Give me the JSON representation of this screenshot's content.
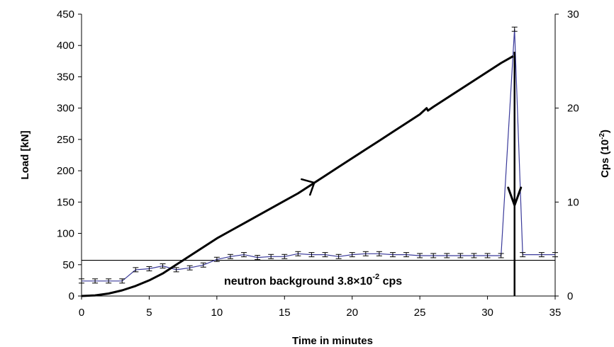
{
  "chart_data": {
    "type": "line",
    "xlabel": "Time in minutes",
    "ylabel_left": "Load [kN]",
    "ylabel_right": "Cps (10",
    "ylabel_right_exponent": "-2",
    "ylabel_right_close": ")",
    "xlim": [
      0,
      35
    ],
    "xticks": [
      0,
      5,
      10,
      15,
      20,
      25,
      30,
      35
    ],
    "ylim_left": [
      0,
      450
    ],
    "yticks_left": [
      0,
      50,
      100,
      150,
      200,
      250,
      300,
      350,
      400,
      450
    ],
    "ylim_right": [
      0,
      30
    ],
    "yticks_right": [
      0,
      10,
      20,
      30
    ],
    "grid": false,
    "legend": "none",
    "series": [
      {
        "axis": "left",
        "color": "#000000",
        "points": [
          [
            0,
            0
          ],
          [
            1,
            1
          ],
          [
            2,
            4
          ],
          [
            3,
            9
          ],
          [
            4,
            16
          ],
          [
            5,
            25
          ],
          [
            6,
            36
          ],
          [
            7,
            50
          ],
          [
            8,
            64
          ],
          [
            9,
            78
          ],
          [
            10,
            92
          ],
          [
            11,
            104
          ],
          [
            12,
            116
          ],
          [
            13,
            128
          ],
          [
            14,
            140
          ],
          [
            15,
            152
          ],
          [
            16,
            164
          ],
          [
            17,
            178
          ],
          [
            18,
            192
          ],
          [
            19,
            206
          ],
          [
            20,
            220
          ],
          [
            21,
            234
          ],
          [
            22,
            248
          ],
          [
            23,
            262
          ],
          [
            24,
            276
          ],
          [
            25,
            290
          ],
          [
            25.5,
            300
          ],
          [
            25.6,
            296
          ],
          [
            26,
            302
          ],
          [
            27,
            316
          ],
          [
            28,
            330
          ],
          [
            29,
            344
          ],
          [
            30,
            358
          ],
          [
            31,
            372
          ],
          [
            31.9,
            383
          ]
        ]
      },
      {
        "axis": "right",
        "color": "#3a3a9a",
        "error_bars": true,
        "points": [
          [
            0,
            1.6
          ],
          [
            1,
            1.6
          ],
          [
            2,
            1.6
          ],
          [
            3,
            1.6
          ],
          [
            4,
            2.8
          ],
          [
            5,
            2.9
          ],
          [
            6,
            3.2
          ],
          [
            7,
            2.8
          ],
          [
            8,
            3.0
          ],
          [
            9,
            3.3
          ],
          [
            10,
            3.9
          ],
          [
            11,
            4.2
          ],
          [
            12,
            4.4
          ],
          [
            13,
            4.1
          ],
          [
            14,
            4.2
          ],
          [
            15,
            4.2
          ],
          [
            16,
            4.5
          ],
          [
            17,
            4.4
          ],
          [
            18,
            4.4
          ],
          [
            19,
            4.2
          ],
          [
            20,
            4.4
          ],
          [
            21,
            4.5
          ],
          [
            22,
            4.5
          ],
          [
            23,
            4.4
          ],
          [
            24,
            4.4
          ],
          [
            25,
            4.3
          ],
          [
            26,
            4.3
          ],
          [
            27,
            4.3
          ],
          [
            28,
            4.3
          ],
          [
            29,
            4.3
          ],
          [
            30,
            4.3
          ],
          [
            31,
            4.3
          ],
          [
            32,
            28.4
          ],
          [
            32.6,
            4.4
          ],
          [
            34,
            4.4
          ],
          [
            35,
            4.4
          ]
        ]
      }
    ],
    "background_line": {
      "axis": "right",
      "value": 3.8
    },
    "annotations": {
      "background": {
        "text": "neutron background 3.8×10",
        "exponent": "-2",
        "suffix": " cps"
      }
    },
    "fracture_marker": {
      "x": 32
    },
    "load_arrow": {
      "x": 17.2
    }
  }
}
